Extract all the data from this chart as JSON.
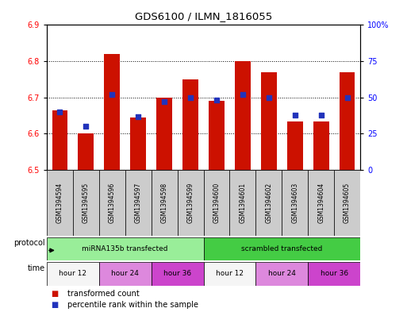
{
  "title": "GDS6100 / ILMN_1816055",
  "samples": [
    "GSM1394594",
    "GSM1394595",
    "GSM1394596",
    "GSM1394597",
    "GSM1394598",
    "GSM1394599",
    "GSM1394600",
    "GSM1394601",
    "GSM1394602",
    "GSM1394603",
    "GSM1394604",
    "GSM1394605"
  ],
  "bar_values": [
    6.665,
    6.6,
    6.82,
    6.645,
    6.7,
    6.75,
    6.69,
    6.8,
    6.77,
    6.635,
    6.635,
    6.77
  ],
  "blue_values": [
    40,
    30,
    52,
    37,
    47,
    50,
    48,
    52,
    50,
    38,
    38,
    50
  ],
  "ylim_left": [
    6.5,
    6.9
  ],
  "ylim_right": [
    0,
    100
  ],
  "yticks_left": [
    6.5,
    6.6,
    6.7,
    6.8,
    6.9
  ],
  "yticks_right": [
    0,
    25,
    50,
    75,
    100
  ],
  "ytick_labels_right": [
    "0",
    "25",
    "50",
    "75",
    "100%"
  ],
  "bar_color": "#cc1100",
  "blue_color": "#2233bb",
  "bar_bottom": 6.5,
  "protocol_groups": [
    {
      "label": "miRNA135b transfected",
      "start": 0,
      "end": 6,
      "color": "#99ee99"
    },
    {
      "label": "scrambled transfected",
      "start": 6,
      "end": 12,
      "color": "#44cc44"
    }
  ],
  "time_groups": [
    {
      "label": "hour 12",
      "start": 0,
      "end": 2,
      "color": "#f5f5f5"
    },
    {
      "label": "hour 24",
      "start": 2,
      "end": 4,
      "color": "#dd88dd"
    },
    {
      "label": "hour 36",
      "start": 4,
      "end": 6,
      "color": "#cc44cc"
    },
    {
      "label": "hour 12",
      "start": 6,
      "end": 8,
      "color": "#f5f5f5"
    },
    {
      "label": "hour 24",
      "start": 8,
      "end": 10,
      "color": "#dd88dd"
    },
    {
      "label": "hour 36",
      "start": 10,
      "end": 12,
      "color": "#cc44cc"
    }
  ],
  "legend_items": [
    {
      "label": "transformed count",
      "color": "#cc1100"
    },
    {
      "label": "percentile rank within the sample",
      "color": "#2233bb"
    }
  ],
  "protocol_label": "protocol",
  "time_label": "time",
  "bg_color": "#ffffff",
  "sample_bg_color": "#cccccc",
  "grid_yticks": [
    6.6,
    6.7,
    6.8
  ]
}
